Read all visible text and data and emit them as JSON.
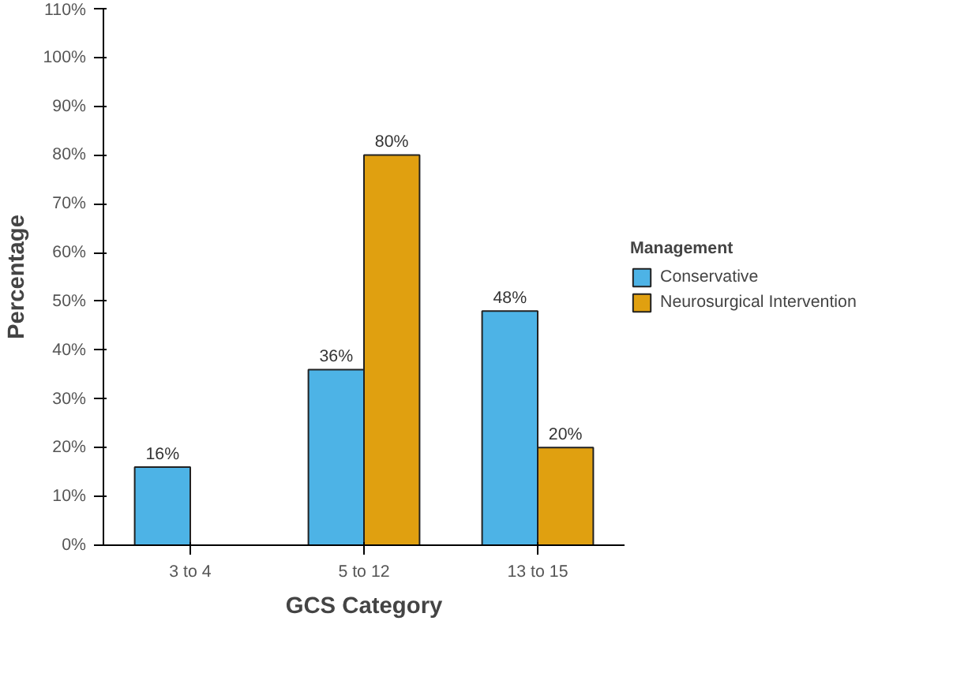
{
  "chart_data": {
    "type": "bar",
    "xlabel": "GCS Category",
    "ylabel": "Percentage",
    "legend_title": "Management",
    "categories": [
      "3 to 4",
      "5 to 12",
      "13 to 15"
    ],
    "series": [
      {
        "name": "Conservative",
        "color": "#4db3e6",
        "values": [
          16,
          36,
          48
        ],
        "value_labels": [
          "16%",
          "36%",
          "48%"
        ]
      },
      {
        "name": "Neurosurgical Intervention",
        "color": "#e0a010",
        "values": [
          null,
          80,
          20
        ],
        "value_labels": [
          null,
          "80%",
          "20%"
        ]
      }
    ],
    "ylim": [
      0,
      110
    ],
    "yticks": [
      {
        "value": 0,
        "label": "0%"
      },
      {
        "value": 10,
        "label": "10%"
      },
      {
        "value": 20,
        "label": "20%"
      },
      {
        "value": 30,
        "label": "30%"
      },
      {
        "value": 40,
        "label": "40%"
      },
      {
        "value": 50,
        "label": "50%"
      },
      {
        "value": 60,
        "label": "60%"
      },
      {
        "value": 70,
        "label": "70%"
      },
      {
        "value": 80,
        "label": "80%"
      },
      {
        "value": 90,
        "label": "90%"
      },
      {
        "value": 100,
        "label": "100%"
      },
      {
        "value": 110,
        "label": "110%"
      }
    ],
    "grid": false,
    "legend": "right"
  }
}
